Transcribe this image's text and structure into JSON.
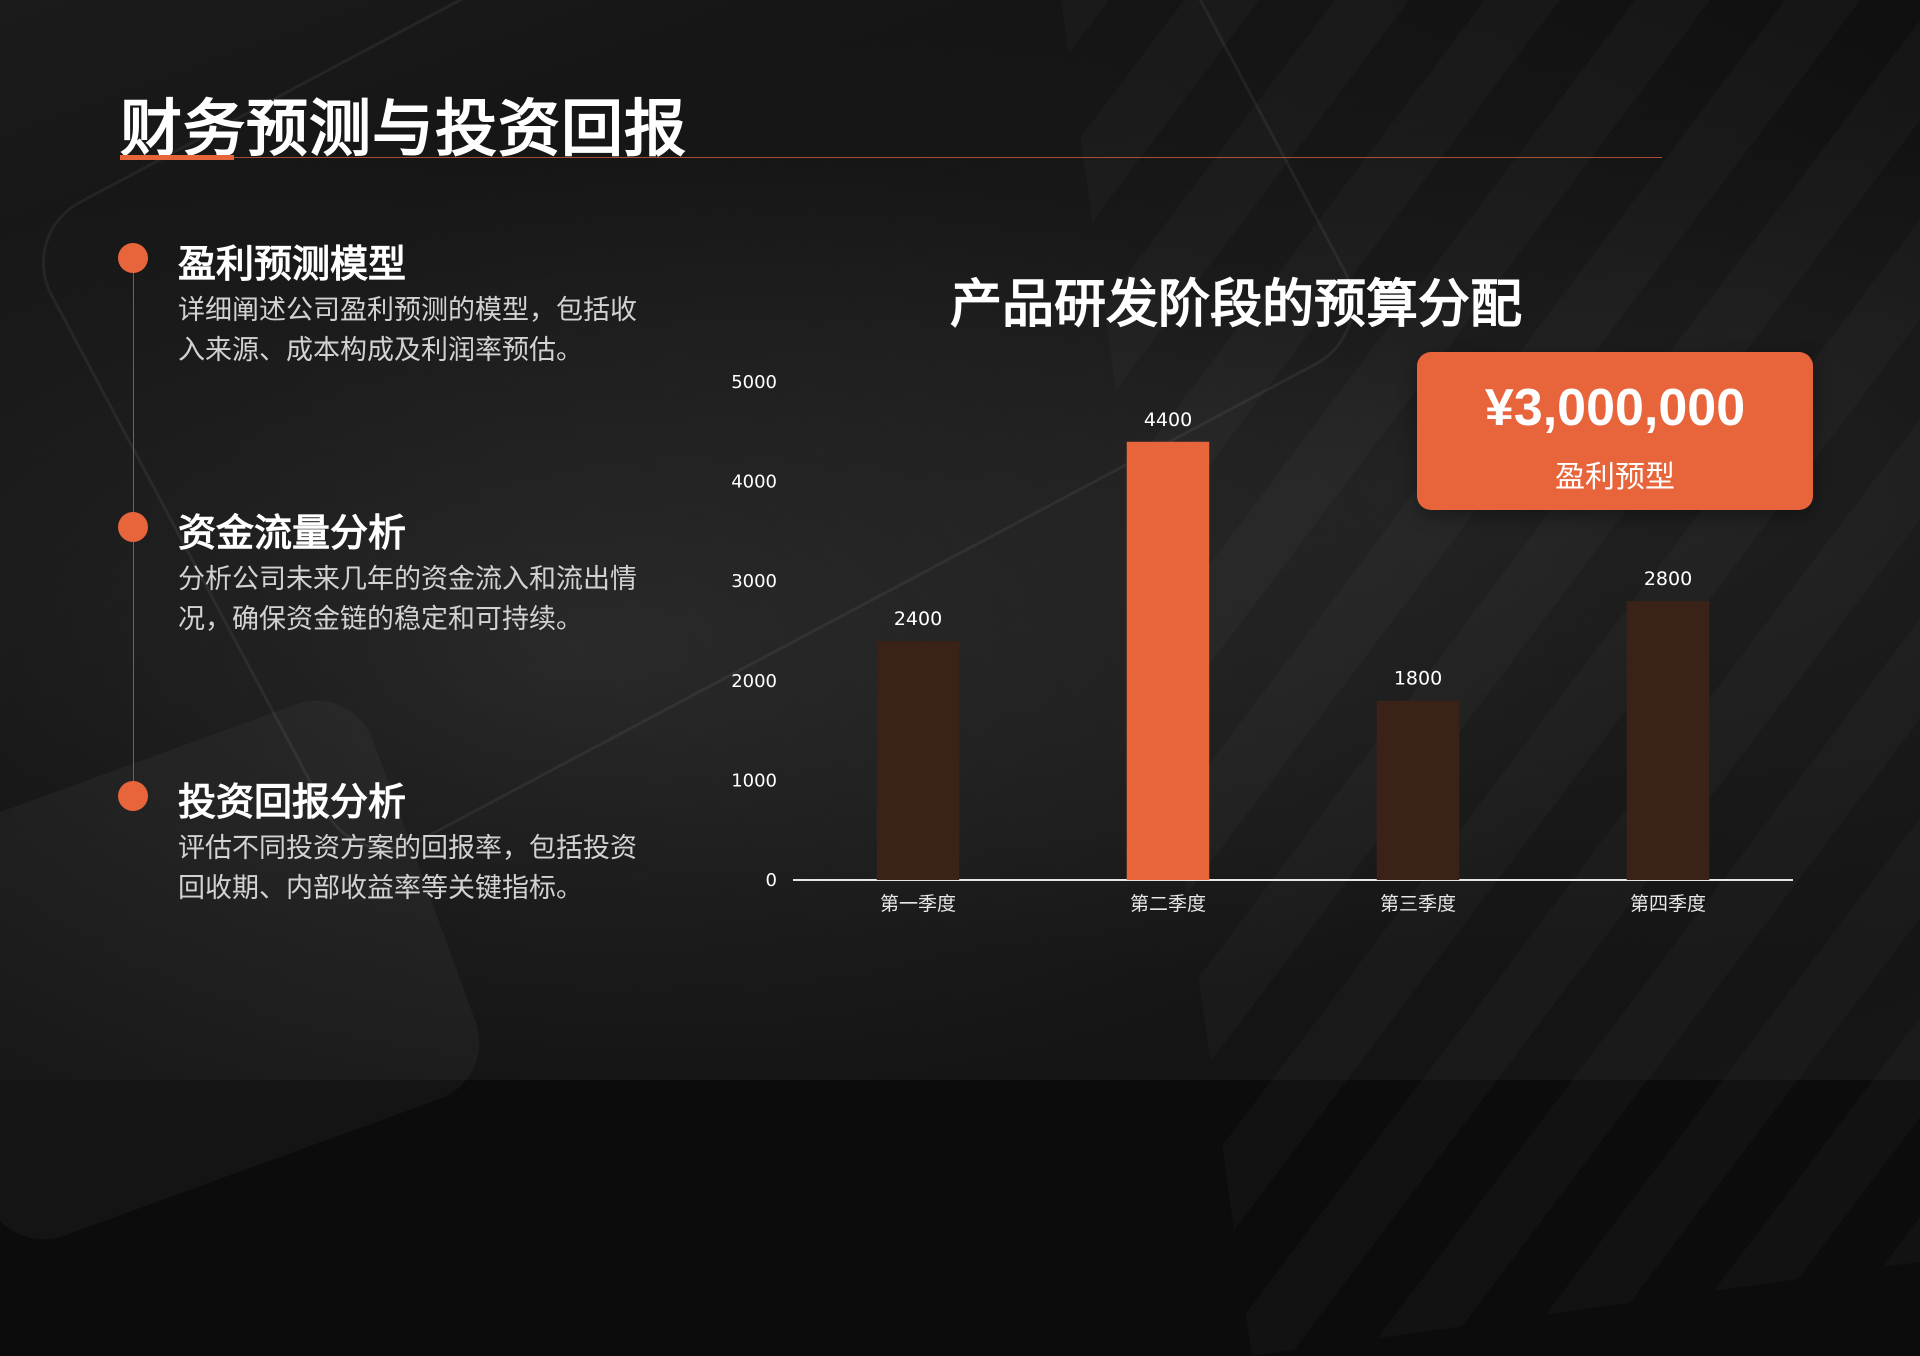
{
  "title": "财务预测与投资回报",
  "sections": [
    {
      "title": "盈利预测模型",
      "desc": "详细阐述公司盈利预测的模型，包括收入来源、成本构成及利润率预估。"
    },
    {
      "title": "资金流量分析",
      "desc": "分析公司未来几年的资金流入和流出情况，确保资金链的稳定和可持续。"
    },
    {
      "title": "投资回报分析",
      "desc": "评估不同投资方案的回报率，包括投资回收期、内部收益率等关键指标。"
    }
  ],
  "callout": {
    "value": "¥3,000,000",
    "label": "盈利预型"
  },
  "colors": {
    "accent": "#e8643a",
    "muted_bar": "#3a2219",
    "background": "#0c0c0c"
  },
  "chart_data": {
    "type": "bar",
    "title": "产品研发阶段的预算分配",
    "categories": [
      "第一季度",
      "第二季度",
      "第三季度",
      "第四季度"
    ],
    "values": [
      2400,
      4400,
      1800,
      2800
    ],
    "highlight_index": 1,
    "ylim": [
      0,
      5000
    ],
    "yticks": [
      0,
      1000,
      2000,
      3000,
      4000,
      5000
    ],
    "grid": false,
    "legend": "none",
    "xlabel": "",
    "ylabel": ""
  }
}
